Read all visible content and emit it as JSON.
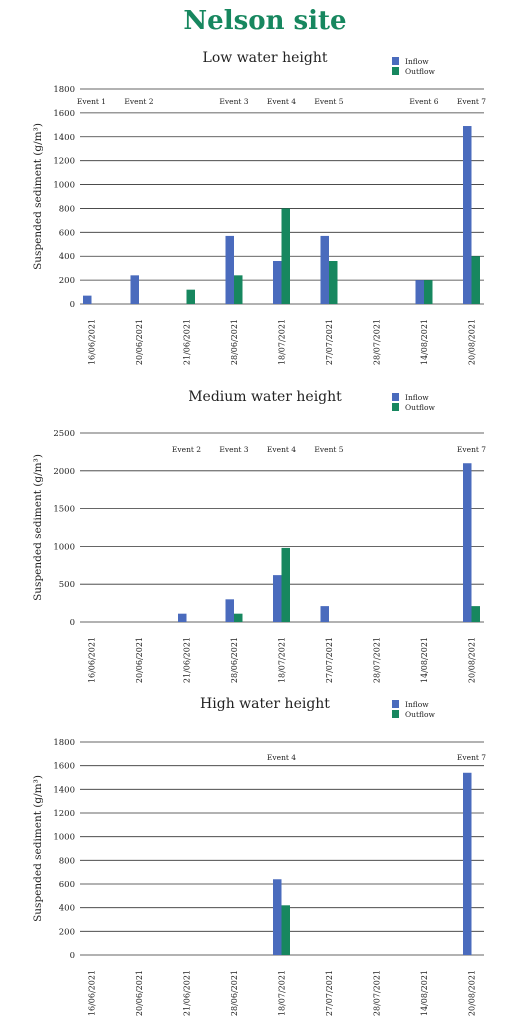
{
  "page": {
    "title": "Nelson site",
    "title_color": "#17875f"
  },
  "colors": {
    "inflow": "#4a6bbd",
    "outflow": "#17875f",
    "grid": "#333333"
  },
  "chart_data": [
    {
      "type": "bar",
      "title": "Low water height",
      "ylabel": "Suspended sediment (g/m³)",
      "ylim": [
        0,
        1800
      ],
      "yticks": [
        0,
        200,
        400,
        600,
        800,
        1000,
        1200,
        1400,
        1600,
        1800
      ],
      "categories": [
        "16/06/2021",
        "20/06/2021",
        "21/06/2021",
        "28/06/2021",
        "18/07/2021",
        "27/07/2021",
        "28/07/2021",
        "14/08/2021",
        "20/08/2021"
      ],
      "events": [
        "Event 1",
        "Event 2",
        "",
        "Event 3",
        "Event 4",
        "Event 5",
        "",
        "Event 6",
        "Event 7"
      ],
      "series": [
        {
          "name": "Inflow",
          "values": [
            70,
            240,
            0,
            570,
            360,
            570,
            0,
            200,
            1490
          ]
        },
        {
          "name": "Outflow",
          "values": [
            0,
            0,
            120,
            240,
            800,
            360,
            0,
            200,
            400
          ]
        }
      ],
      "legend": "top-right",
      "grid": true
    },
    {
      "type": "bar",
      "title": "Medium water height",
      "ylabel": "Suspended sediment (g/m³)",
      "ylim": [
        0,
        2500
      ],
      "yticks": [
        0,
        500,
        1000,
        1500,
        2000,
        2500
      ],
      "categories": [
        "16/06/2021",
        "20/06/2021",
        "21/06/2021",
        "28/06/2021",
        "18/07/2021",
        "27/07/2021",
        "28/07/2021",
        "14/08/2021",
        "20/08/2021"
      ],
      "events": [
        "",
        "",
        "Event 2",
        "Event 3",
        "Event 4",
        "Event 5",
        "",
        "",
        "Event 7"
      ],
      "series": [
        {
          "name": "Inflow",
          "values": [
            0,
            0,
            110,
            300,
            620,
            210,
            0,
            0,
            2100
          ]
        },
        {
          "name": "Outflow",
          "values": [
            0,
            0,
            0,
            110,
            980,
            0,
            0,
            0,
            210
          ]
        }
      ],
      "legend": "top-right",
      "grid": true
    },
    {
      "type": "bar",
      "title": "High water height",
      "ylabel": "Suspended sediment (g/m³)",
      "ylim": [
        0,
        1800
      ],
      "yticks": [
        0,
        200,
        400,
        600,
        800,
        1000,
        1200,
        1400,
        1600,
        1800
      ],
      "categories": [
        "16/06/2021",
        "20/06/2021",
        "21/06/2021",
        "28/06/2021",
        "18/07/2021",
        "27/07/2021",
        "28/07/2021",
        "14/08/2021",
        "20/08/2021"
      ],
      "events": [
        "",
        "",
        "",
        "",
        "Event 4",
        "",
        "",
        "",
        "Event 7"
      ],
      "series": [
        {
          "name": "Inflow",
          "values": [
            0,
            0,
            0,
            0,
            640,
            0,
            0,
            0,
            1540
          ]
        },
        {
          "name": "Outflow",
          "values": [
            0,
            0,
            0,
            0,
            420,
            0,
            0,
            0,
            0
          ]
        }
      ],
      "legend": "top-right",
      "grid": true
    }
  ]
}
